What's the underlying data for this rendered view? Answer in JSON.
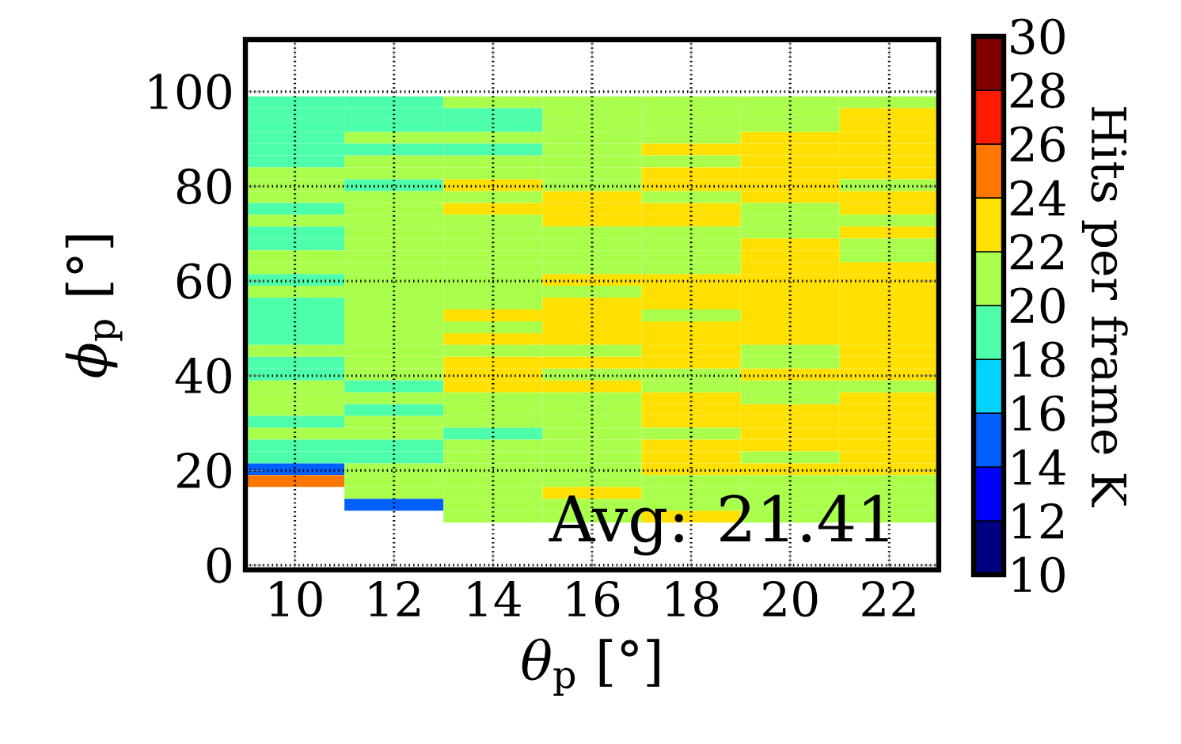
{
  "chart_data": {
    "type": "heatmap",
    "xlabel": "*θ*$_{p}$ [°]",
    "ylabel": "*ϕ*$_{p}$ [°]",
    "clabel": "Hits per frame K",
    "annotations": [
      "Avg: 21.41"
    ],
    "categories": [
      "10",
      "12",
      "14",
      "16",
      "18",
      "20",
      "22"
    ],
    "y": [
      97.75,
      95.25,
      92.75,
      90.25,
      87.75,
      85.25,
      82.75,
      80.25,
      77.75,
      75.25,
      72.75,
      70.25,
      67.75,
      65.25,
      62.75,
      60.25,
      57.75,
      55.25,
      52.75,
      50.25,
      47.75,
      45.25,
      42.75,
      40.25,
      37.75,
      35.25,
      32.75,
      30.25,
      27.75,
      25.25,
      22.75,
      20.25,
      17.75,
      15.25,
      12.75,
      10.25
    ],
    "ylim": [
      -1,
      111
    ],
    "yticks": [
      0,
      20,
      40,
      60,
      80,
      100
    ],
    "grid": true,
    "clim": [
      10,
      30
    ],
    "cticks": [
      10,
      12,
      14,
      16,
      18,
      20,
      22,
      24,
      26,
      28,
      30
    ],
    "colors": [
      "#000080",
      "#0000ff",
      "#0060ff",
      "#00d4ff",
      "#4dffaa",
      "#aaff4d",
      "#ffe000",
      "#ff7700",
      "#ff1a00",
      "#800000"
    ],
    "cells": [
      [
        19,
        19,
        21,
        21,
        21,
        21,
        21
      ],
      [
        19,
        19,
        19,
        21,
        21,
        21,
        23
      ],
      [
        19,
        19,
        19,
        21,
        21,
        21,
        23
      ],
      [
        19,
        21,
        21,
        21,
        21,
        23,
        23
      ],
      [
        19,
        19,
        19,
        21,
        23,
        23,
        23
      ],
      [
        19,
        21,
        21,
        21,
        21,
        23,
        23
      ],
      [
        21,
        21,
        21,
        21,
        23,
        23,
        23
      ],
      [
        21,
        19,
        23,
        21,
        23,
        23,
        21
      ],
      [
        21,
        21,
        21,
        23,
        21,
        23,
        23
      ],
      [
        19,
        21,
        23,
        23,
        23,
        21,
        23
      ],
      [
        21,
        21,
        21,
        23,
        23,
        21,
        21
      ],
      [
        19,
        21,
        21,
        21,
        21,
        21,
        23
      ],
      [
        19,
        21,
        21,
        21,
        21,
        23,
        21
      ],
      [
        21,
        21,
        21,
        21,
        21,
        23,
        21
      ],
      [
        21,
        21,
        21,
        21,
        21,
        23,
        23
      ],
      [
        19,
        21,
        21,
        23,
        23,
        23,
        23
      ],
      [
        21,
        21,
        21,
        21,
        23,
        23,
        23
      ],
      [
        19,
        21,
        21,
        23,
        23,
        23,
        23
      ],
      [
        19,
        21,
        23,
        23,
        21,
        23,
        23
      ],
      [
        19,
        21,
        21,
        23,
        23,
        23,
        23
      ],
      [
        19,
        21,
        23,
        23,
        23,
        23,
        23
      ],
      [
        21,
        21,
        21,
        21,
        23,
        21,
        23
      ],
      [
        19,
        21,
        23,
        23,
        23,
        21,
        23
      ],
      [
        19,
        21,
        23,
        21,
        21,
        23,
        23
      ],
      [
        21,
        19,
        23,
        23,
        21,
        21,
        21
      ],
      [
        21,
        21,
        21,
        21,
        23,
        21,
        23
      ],
      [
        21,
        19,
        21,
        21,
        23,
        23,
        23
      ],
      [
        19,
        21,
        21,
        21,
        23,
        23,
        23
      ],
      [
        21,
        21,
        19,
        21,
        21,
        23,
        23
      ],
      [
        19,
        19,
        21,
        21,
        23,
        23,
        23
      ],
      [
        19,
        19,
        21,
        21,
        23,
        21,
        23
      ],
      [
        15,
        21,
        21,
        21,
        23,
        23,
        23
      ],
      [
        25,
        21,
        21,
        21,
        21,
        21,
        21
      ],
      [
        null,
        21,
        21,
        23,
        21,
        21,
        21
      ],
      [
        null,
        15,
        21,
        21,
        21,
        21,
        21
      ],
      [
        null,
        null,
        21,
        21,
        23,
        21,
        21
      ]
    ]
  }
}
